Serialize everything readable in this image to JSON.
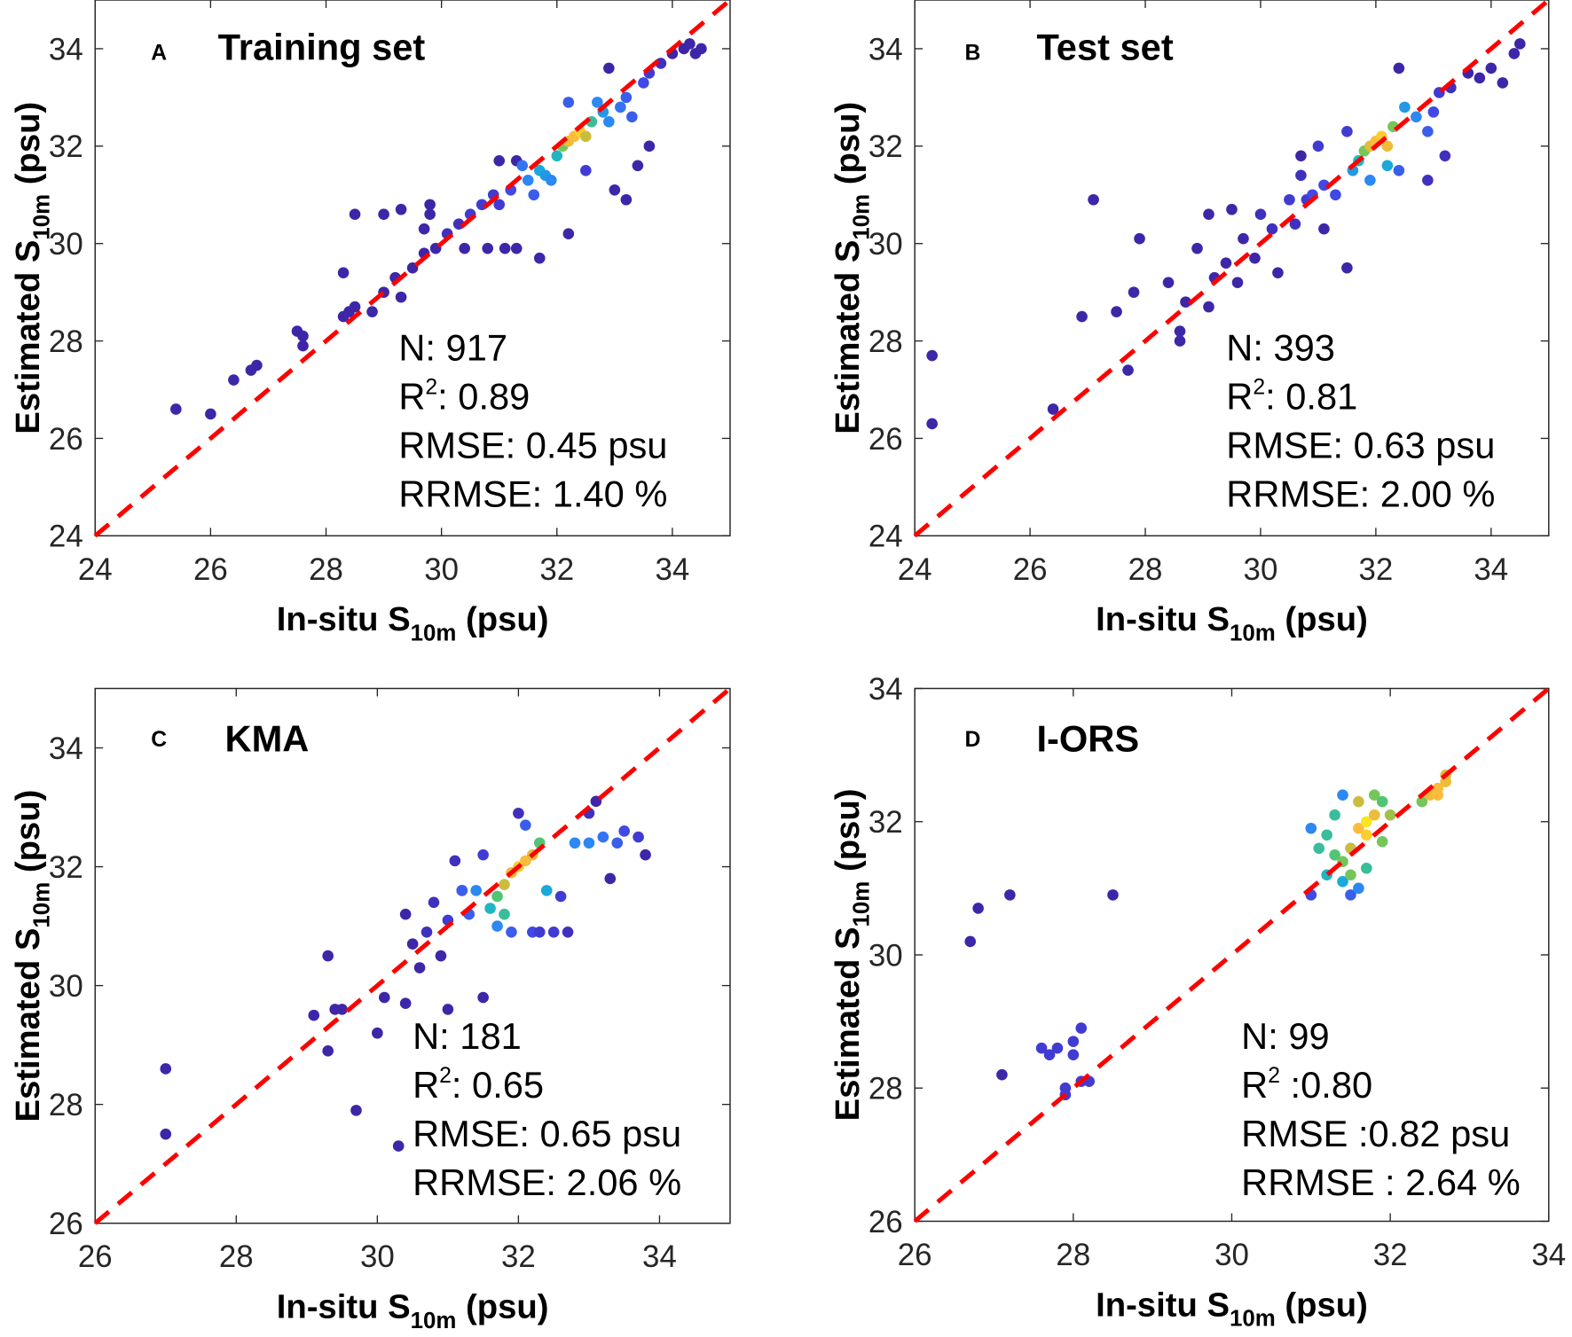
{
  "axis_text": {
    "xlabel_pre": "In-situ S",
    "xlabel_sub": "10m",
    "xlabel_post": " (psu)",
    "ylabel_pre": "Estimated S",
    "ylabel_sub": "10m",
    "ylabel_post": " (psu)"
  },
  "colors": {
    "one_to_one_line": "#ff0000",
    "colormap": [
      "#3e26a8",
      "#4145e4",
      "#2f83f5",
      "#15b2d3",
      "#5cc863",
      "#d6bc3a",
      "#fdbc3c",
      "#f9fb0e"
    ]
  },
  "chart_data": [
    {
      "type": "scatter",
      "letter": "A",
      "title": "Training set",
      "xlabel": "In-situ S10m (psu)",
      "ylabel": "Estimated S10m (psu)",
      "xlim": [
        24,
        35
      ],
      "ylim": [
        24,
        35
      ],
      "xticks": [
        24,
        26,
        28,
        30,
        32,
        34
      ],
      "yticks": [
        24,
        26,
        28,
        30,
        32,
        34
      ],
      "stats": [
        "N: 917",
        "R2: 0.89",
        "RMSE: 0.45 psu",
        "RRMSE: 1.40 %"
      ],
      "stats_parts": {
        "n": "N: 917",
        "r2_pre": "R",
        "r2_sup": "2",
        "r2_post": ": 0.89",
        "rmse": "RMSE: 0.45 psu",
        "rrmse": "RRMSE: 1.40 %"
      },
      "points_note": "x, y, relative density",
      "points": [
        [
          25.4,
          26.6,
          0
        ],
        [
          26,
          26.5,
          0
        ],
        [
          26.4,
          27.2,
          0
        ],
        [
          26.7,
          27.4,
          0
        ],
        [
          26.8,
          27.5,
          0
        ],
        [
          27.5,
          28.2,
          0
        ],
        [
          27.6,
          28.1,
          0
        ],
        [
          27.6,
          27.9,
          0
        ],
        [
          28.3,
          29.4,
          0
        ],
        [
          28.3,
          28.5,
          0
        ],
        [
          28.5,
          28.7,
          0
        ],
        [
          28.4,
          28.6,
          0
        ],
        [
          28.8,
          28.6,
          0
        ],
        [
          29,
          29.0,
          0
        ],
        [
          29.2,
          29.3,
          0
        ],
        [
          29.3,
          28.9,
          0
        ],
        [
          29.5,
          29.5,
          0
        ],
        [
          29.7,
          29.8,
          0
        ],
        [
          29.9,
          29.9,
          0
        ],
        [
          28.5,
          30.6,
          0
        ],
        [
          29,
          30.6,
          0
        ],
        [
          29.3,
          30.7,
          0
        ],
        [
          29.8,
          30.6,
          0
        ],
        [
          29.7,
          30.3,
          0
        ],
        [
          29.8,
          30.8,
          0
        ],
        [
          30.1,
          30.2,
          0.05
        ],
        [
          30.3,
          30.4,
          0.05
        ],
        [
          30.5,
          30.6,
          0.1
        ],
        [
          30.7,
          30.8,
          0.1
        ],
        [
          30.4,
          29.9,
          0
        ],
        [
          30.8,
          29.9,
          0
        ],
        [
          31.1,
          29.9,
          0
        ],
        [
          31.3,
          29.9,
          0
        ],
        [
          31.7,
          29.7,
          0
        ],
        [
          32.2,
          30.2,
          0
        ],
        [
          31,
          31.7,
          0
        ],
        [
          31.3,
          31.7,
          0
        ],
        [
          31.2,
          31.1,
          0.15
        ],
        [
          31.5,
          31.3,
          0.3
        ],
        [
          31.7,
          31.5,
          0.4
        ],
        [
          31.8,
          31.4,
          0.35
        ],
        [
          31.6,
          31.0,
          0.2
        ],
        [
          32.0,
          31.8,
          0.45
        ],
        [
          32.1,
          32.0,
          0.6
        ],
        [
          32.2,
          32.1,
          0.8
        ],
        [
          32.3,
          32.2,
          0.85
        ],
        [
          32.4,
          32.3,
          0.9
        ],
        [
          32.5,
          32.2,
          0.7
        ],
        [
          32.6,
          32.5,
          0.5
        ],
        [
          32.8,
          32.7,
          0.35
        ],
        [
          32.9,
          32.5,
          0.3
        ],
        [
          33.1,
          32.8,
          0.25
        ],
        [
          33.2,
          33.0,
          0.2
        ],
        [
          33.3,
          32.6,
          0.2
        ],
        [
          33.5,
          33.3,
          0.15
        ],
        [
          33.6,
          33.5,
          0.1
        ],
        [
          33.8,
          33.7,
          0.05
        ],
        [
          34,
          33.9,
          0
        ],
        [
          34.2,
          34.0,
          0
        ],
        [
          34.4,
          33.9,
          0
        ],
        [
          34.5,
          34.0,
          0
        ],
        [
          34.3,
          34.1,
          0
        ],
        [
          32.2,
          32.9,
          0.2
        ],
        [
          32.9,
          33.6,
          0
        ],
        [
          33,
          31.1,
          0
        ],
        [
          33.2,
          30.9,
          0
        ],
        [
          33.6,
          32.0,
          0
        ],
        [
          33.4,
          31.6,
          0
        ],
        [
          32.5,
          31.5,
          0.1
        ],
        [
          31.9,
          31.3,
          0.3
        ],
        [
          31.0,
          30.8,
          0.1
        ],
        [
          30.9,
          31.0,
          0.1
        ],
        [
          32.7,
          32.9,
          0.3
        ],
        [
          31.4,
          31.6,
          0.25
        ]
      ]
    },
    {
      "type": "scatter",
      "letter": "B",
      "title": "Test set",
      "xlabel": "In-situ S10m (psu)",
      "ylabel": "Estimated S10m (psu)",
      "xlim": [
        24,
        35
      ],
      "ylim": [
        24,
        35
      ],
      "xticks": [
        24,
        26,
        28,
        30,
        32,
        34
      ],
      "yticks": [
        24,
        26,
        28,
        30,
        32,
        34
      ],
      "stats": [
        "N: 393",
        "R2: 0.81",
        "RMSE: 0.63 psu",
        "RRMSE: 2.00 %"
      ],
      "stats_parts": {
        "n": "N: 393",
        "r2_pre": "R",
        "r2_sup": "2",
        "r2_post": ": 0.81",
        "rmse": "RMSE: 0.63 psu",
        "rrmse": "RRMSE: 2.00 %"
      },
      "points": [
        [
          24.3,
          27.7,
          0
        ],
        [
          24.3,
          26.3,
          0
        ],
        [
          26.4,
          26.6,
          0
        ],
        [
          26.9,
          28.5,
          0
        ],
        [
          27.1,
          30.9,
          0
        ],
        [
          27.5,
          28.6,
          0
        ],
        [
          27.7,
          27.4,
          0
        ],
        [
          27.8,
          29.0,
          0
        ],
        [
          27.9,
          30.1,
          0
        ],
        [
          28.4,
          29.2,
          0
        ],
        [
          28.6,
          28.0,
          0
        ],
        [
          28.6,
          28.2,
          0
        ],
        [
          28.7,
          28.8,
          0
        ],
        [
          28.9,
          29.9,
          0
        ],
        [
          29.1,
          30.6,
          0
        ],
        [
          29.2,
          29.3,
          0
        ],
        [
          29.1,
          28.7,
          0
        ],
        [
          29.4,
          29.6,
          0
        ],
        [
          29.5,
          30.7,
          0
        ],
        [
          29.6,
          29.2,
          0
        ],
        [
          29.7,
          30.1,
          0
        ],
        [
          29.9,
          29.7,
          0
        ],
        [
          30.0,
          30.6,
          0.05
        ],
        [
          30.2,
          30.3,
          0.05
        ],
        [
          30.3,
          29.4,
          0
        ],
        [
          30.5,
          30.9,
          0.1
        ],
        [
          30.6,
          30.4,
          0.05
        ],
        [
          30.7,
          31.4,
          0.05
        ],
        [
          30.8,
          30.9,
          0.1
        ],
        [
          30.9,
          31.0,
          0.15
        ],
        [
          31.1,
          31.2,
          0.15
        ],
        [
          31.1,
          30.3,
          0
        ],
        [
          31.3,
          31.0,
          0.15
        ],
        [
          31.5,
          29.5,
          0
        ],
        [
          31.5,
          32.3,
          0.1
        ],
        [
          31.6,
          31.5,
          0.35
        ],
        [
          31.7,
          31.7,
          0.45
        ],
        [
          31.8,
          31.9,
          0.6
        ],
        [
          31.9,
          32.0,
          0.75
        ],
        [
          32.0,
          32.1,
          0.85
        ],
        [
          32.1,
          32.2,
          0.9
        ],
        [
          32.2,
          32.0,
          0.8
        ],
        [
          32.3,
          32.4,
          0.6
        ],
        [
          32.2,
          31.6,
          0.4
        ],
        [
          31.9,
          31.3,
          0.3
        ],
        [
          32.4,
          31.5,
          0.2
        ],
        [
          32.5,
          32.8,
          0.35
        ],
        [
          32.7,
          32.6,
          0.3
        ],
        [
          32.9,
          32.3,
          0.2
        ],
        [
          33.0,
          32.7,
          0.15
        ],
        [
          33.1,
          33.1,
          0.1
        ],
        [
          32.4,
          33.6,
          0
        ],
        [
          33.3,
          33.2,
          0.05
        ],
        [
          33.6,
          33.5,
          0
        ],
        [
          33.8,
          33.4,
          0
        ],
        [
          34.0,
          33.6,
          0
        ],
        [
          34.2,
          33.3,
          0
        ],
        [
          34.4,
          33.9,
          0
        ],
        [
          34.5,
          34.1,
          0
        ],
        [
          33.2,
          31.8,
          0.05
        ],
        [
          32.9,
          31.3,
          0.05
        ],
        [
          31.0,
          32.0,
          0.1
        ],
        [
          30.7,
          31.8,
          0
        ]
      ]
    },
    {
      "type": "scatter",
      "letter": "C",
      "title": "KMA",
      "xlabel": "In-situ S10m (psu)",
      "ylabel": "Estimated S10m (psu)",
      "xlim": [
        26,
        35
      ],
      "ylim": [
        26,
        35
      ],
      "xticks": [
        26,
        28,
        30,
        32,
        34
      ],
      "yticks": [
        26,
        28,
        30,
        32,
        34
      ],
      "stats": [
        "N: 181",
        "R2: 0.65",
        "RMSE: 0.65 psu",
        "RRMSE: 2.06 %"
      ],
      "stats_parts": {
        "n": "N: 181",
        "r2_pre": "R",
        "r2_sup": "2",
        "r2_post": ": 0.65",
        "rmse": "RMSE: 0.65 psu",
        "rrmse": "RRMSE: 2.06 %"
      },
      "points": [
        [
          27,
          28.6,
          0
        ],
        [
          27,
          27.5,
          0
        ],
        [
          29.1,
          29.5,
          0
        ],
        [
          29.3,
          30.5,
          0
        ],
        [
          29.3,
          28.9,
          0
        ],
        [
          29.4,
          29.6,
          0
        ],
        [
          29.5,
          29.6,
          0
        ],
        [
          29.7,
          27.9,
          0
        ],
        [
          30.0,
          29.2,
          0
        ],
        [
          30.1,
          29.8,
          0
        ],
        [
          30.3,
          27.3,
          0
        ],
        [
          30.4,
          29.7,
          0
        ],
        [
          30.5,
          30.7,
          0
        ],
        [
          30.4,
          31.2,
          0
        ],
        [
          30.6,
          30.3,
          0
        ],
        [
          30.7,
          30.9,
          0.05
        ],
        [
          30.8,
          31.4,
          0.05
        ],
        [
          30.9,
          30.5,
          0
        ],
        [
          31.0,
          29.6,
          0
        ],
        [
          31.0,
          31.1,
          0.1
        ],
        [
          31.2,
          31.6,
          0.15
        ],
        [
          31.3,
          31.2,
          0.2
        ],
        [
          31.4,
          31.6,
          0.3
        ],
        [
          31.5,
          29.8,
          0
        ],
        [
          31.6,
          31.3,
          0.45
        ],
        [
          31.7,
          31.5,
          0.55
        ],
        [
          31.8,
          31.7,
          0.7
        ],
        [
          31.9,
          31.9,
          0.8
        ],
        [
          32.0,
          32.0,
          0.9
        ],
        [
          32.1,
          32.1,
          0.85
        ],
        [
          32.2,
          32.2,
          0.75
        ],
        [
          32.3,
          32.4,
          0.55
        ],
        [
          31.7,
          31.0,
          0.3
        ],
        [
          31.9,
          30.9,
          0.2
        ],
        [
          32.2,
          30.9,
          0.15
        ],
        [
          32.5,
          30.9,
          0.1
        ],
        [
          32.7,
          30.9,
          0.05
        ],
        [
          32.6,
          31.5,
          0.1
        ],
        [
          32.0,
          32.9,
          0.05
        ],
        [
          32.1,
          32.7,
          0.2
        ],
        [
          32.8,
          32.4,
          0.3
        ],
        [
          33.0,
          32.4,
          0.3
        ],
        [
          33.2,
          32.5,
          0.25
        ],
        [
          33.4,
          32.4,
          0.2
        ],
        [
          33.5,
          32.6,
          0.15
        ],
        [
          33.7,
          32.5,
          0.1
        ],
        [
          33.8,
          32.2,
          0
        ],
        [
          33.1,
          33.1,
          0
        ],
        [
          33.3,
          31.8,
          0
        ],
        [
          33.0,
          32.9,
          0.05
        ],
        [
          31.1,
          32.1,
          0.05
        ],
        [
          31.5,
          32.2,
          0.1
        ],
        [
          31.2,
          31.6,
          0.2
        ],
        [
          32.4,
          31.6,
          0.4
        ],
        [
          31.8,
          31.2,
          0.5
        ],
        [
          32.3,
          30.9,
          0.1
        ]
      ]
    },
    {
      "type": "scatter",
      "letter": "D",
      "title": "I-ORS",
      "xlabel": "In-situ S10m (psu)",
      "ylabel": "Estimated S10m (psu)",
      "xlim": [
        26,
        34
      ],
      "ylim": [
        26,
        34
      ],
      "xticks": [
        26,
        28,
        30,
        32,
        34
      ],
      "yticks": [
        26,
        28,
        30,
        32,
        34
      ],
      "stats": [
        "N: 99",
        "R2 :0.80",
        "RMSE :0.82 psu",
        "RRMSE : 2.64 %"
      ],
      "stats_parts": {
        "n": "N: 99",
        "r2_pre": "R",
        "r2_sup": "2",
        "r2_post": " :0.80",
        "rmse": "RMSE :0.82 psu",
        "rrmse": "RRMSE : 2.64 %"
      },
      "points": [
        [
          26.7,
          30.2,
          0
        ],
        [
          26.8,
          30.7,
          0
        ],
        [
          27.2,
          30.9,
          0
        ],
        [
          28.5,
          30.9,
          0
        ],
        [
          27.1,
          28.2,
          0
        ],
        [
          27.6,
          28.6,
          0.1
        ],
        [
          27.7,
          28.5,
          0.1
        ],
        [
          27.8,
          28.6,
          0.1
        ],
        [
          28.0,
          28.7,
          0.1
        ],
        [
          28.0,
          28.5,
          0.1
        ],
        [
          28.1,
          28.9,
          0.1
        ],
        [
          27.9,
          28.0,
          0.1
        ],
        [
          27.9,
          27.9,
          0.1
        ],
        [
          28.1,
          28.1,
          0.1
        ],
        [
          28.2,
          28.1,
          0.1
        ],
        [
          31.0,
          30.9,
          0.15
        ],
        [
          31.0,
          31.9,
          0.3
        ],
        [
          31.1,
          31.6,
          0.5
        ],
        [
          31.2,
          31.2,
          0.45
        ],
        [
          31.3,
          31.5,
          0.55
        ],
        [
          31.3,
          32.1,
          0.5
        ],
        [
          31.4,
          31.1,
          0.4
        ],
        [
          31.4,
          32.4,
          0.3
        ],
        [
          31.5,
          31.6,
          0.7
        ],
        [
          31.5,
          31.2,
          0.6
        ],
        [
          31.5,
          30.9,
          0.2
        ],
        [
          31.6,
          31.9,
          0.85
        ],
        [
          31.7,
          32.0,
          0.95
        ],
        [
          31.7,
          31.8,
          0.9
        ],
        [
          31.8,
          32.1,
          0.8
        ],
        [
          31.6,
          32.3,
          0.7
        ],
        [
          31.8,
          32.4,
          0.6
        ],
        [
          31.9,
          32.3,
          0.55
        ],
        [
          31.9,
          31.7,
          0.6
        ],
        [
          32.0,
          32.1,
          0.65
        ],
        [
          31.7,
          31.3,
          0.5
        ],
        [
          31.6,
          31.0,
          0.3
        ],
        [
          32.4,
          32.3,
          0.6
        ],
        [
          32.5,
          32.4,
          0.8
        ],
        [
          32.6,
          32.5,
          0.85
        ],
        [
          32.7,
          32.6,
          0.8
        ],
        [
          32.7,
          32.7,
          0.75
        ],
        [
          32.6,
          32.4,
          0.85
        ],
        [
          31.2,
          31.8,
          0.5
        ],
        [
          31.4,
          31.4,
          0.6
        ]
      ]
    }
  ]
}
